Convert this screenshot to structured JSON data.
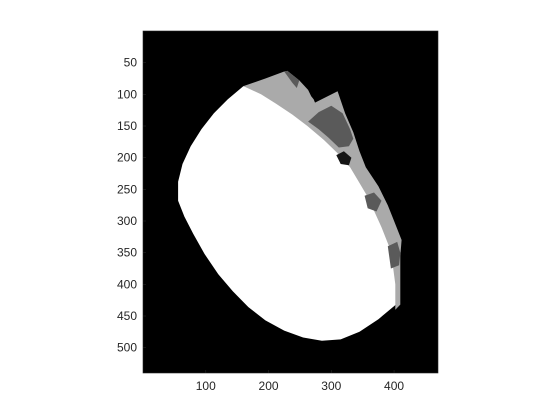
{
  "chart_data": {
    "type": "heatmap",
    "title": "",
    "xlabel": "",
    "ylabel": "",
    "colormap": "gray",
    "background_color": "#000000",
    "xlim": [
      0,
      470
    ],
    "ylim": [
      540,
      0
    ],
    "y_reversed": true,
    "xticks": [
      100,
      200,
      300,
      400
    ],
    "yticks": [
      50,
      100,
      150,
      200,
      250,
      300,
      350,
      400,
      450,
      500
    ],
    "regions": [
      {
        "label": "white-disc-region",
        "color": "#ffffff",
        "polygon": [
          [
            160,
            87
          ],
          [
            190,
            97
          ],
          [
            215,
            112
          ],
          [
            240,
            130
          ],
          [
            263,
            148
          ],
          [
            290,
            170
          ],
          [
            315,
            190
          ],
          [
            335,
            210
          ],
          [
            352,
            232
          ],
          [
            365,
            258
          ],
          [
            378,
            285
          ],
          [
            392,
            318
          ],
          [
            400,
            350
          ],
          [
            402,
            385
          ],
          [
            404,
            420
          ],
          [
            403,
            432
          ],
          [
            375,
            455
          ],
          [
            345,
            475
          ],
          [
            315,
            487
          ],
          [
            285,
            489
          ],
          [
            255,
            484
          ],
          [
            225,
            473
          ],
          [
            195,
            457
          ],
          [
            168,
            436
          ],
          [
            143,
            411
          ],
          [
            120,
            384
          ],
          [
            98,
            352
          ],
          [
            80,
            320
          ],
          [
            66,
            293
          ],
          [
            56,
            268
          ],
          [
            56,
            238
          ],
          [
            63,
            210
          ],
          [
            76,
            182
          ],
          [
            93,
            155
          ],
          [
            113,
            130
          ],
          [
            135,
            108
          ]
        ]
      },
      {
        "label": "light-gray-band",
        "color": "#aaaaaa",
        "polygon": [
          [
            160,
            87
          ],
          [
            195,
            75
          ],
          [
            225,
            64
          ],
          [
            230,
            63
          ],
          [
            249,
            78
          ],
          [
            263,
            93
          ],
          [
            268,
            103
          ],
          [
            272,
            108
          ],
          [
            274,
            113
          ],
          [
            310,
            95
          ],
          [
            322,
            130
          ],
          [
            335,
            160
          ],
          [
            345,
            190
          ],
          [
            355,
            215
          ],
          [
            375,
            245
          ],
          [
            390,
            275
          ],
          [
            398,
            295
          ],
          [
            412,
            330
          ],
          [
            410,
            355
          ],
          [
            410,
            385
          ],
          [
            410,
            432
          ],
          [
            402,
            440
          ],
          [
            402,
            400
          ],
          [
            398,
            370
          ],
          [
            392,
            340
          ],
          [
            380,
            310
          ],
          [
            370,
            288
          ],
          [
            358,
            262
          ],
          [
            345,
            240
          ],
          [
            330,
            215
          ],
          [
            310,
            193
          ],
          [
            288,
            172
          ],
          [
            262,
            150
          ],
          [
            238,
            132
          ],
          [
            212,
            115
          ],
          [
            188,
            100
          ]
        ]
      },
      {
        "label": "dark-gray-patches",
        "color": "#5a5a5a",
        "polygon": [
          [
            263,
            143
          ],
          [
            280,
            128
          ],
          [
            300,
            118
          ],
          [
            318,
            130
          ],
          [
            330,
            155
          ],
          [
            335,
            170
          ],
          [
            328,
            182
          ],
          [
            312,
            184
          ],
          [
            295,
            168
          ],
          [
            280,
            155
          ]
        ]
      },
      {
        "label": "dark-gray-patches-2",
        "color": "#5a5a5a",
        "polygon": [
          [
            353,
            260
          ],
          [
            368,
            255
          ],
          [
            380,
            268
          ],
          [
            372,
            285
          ],
          [
            358,
            280
          ]
        ]
      },
      {
        "label": "dark-gray-patches-3",
        "color": "#5a5a5a",
        "polygon": [
          [
            390,
            340
          ],
          [
            405,
            333
          ],
          [
            410,
            350
          ],
          [
            408,
            370
          ],
          [
            395,
            375
          ]
        ]
      },
      {
        "label": "dark-gray-top",
        "color": "#5a5a5a",
        "polygon": [
          [
            225,
            64
          ],
          [
            230,
            63
          ],
          [
            249,
            78
          ],
          [
            245,
            90
          ],
          [
            238,
            82
          ]
        ]
      },
      {
        "label": "black-gap",
        "color": "#151515",
        "polygon": [
          [
            308,
            196
          ],
          [
            320,
            190
          ],
          [
            332,
            200
          ],
          [
            328,
            212
          ],
          [
            315,
            210
          ]
        ]
      }
    ]
  }
}
